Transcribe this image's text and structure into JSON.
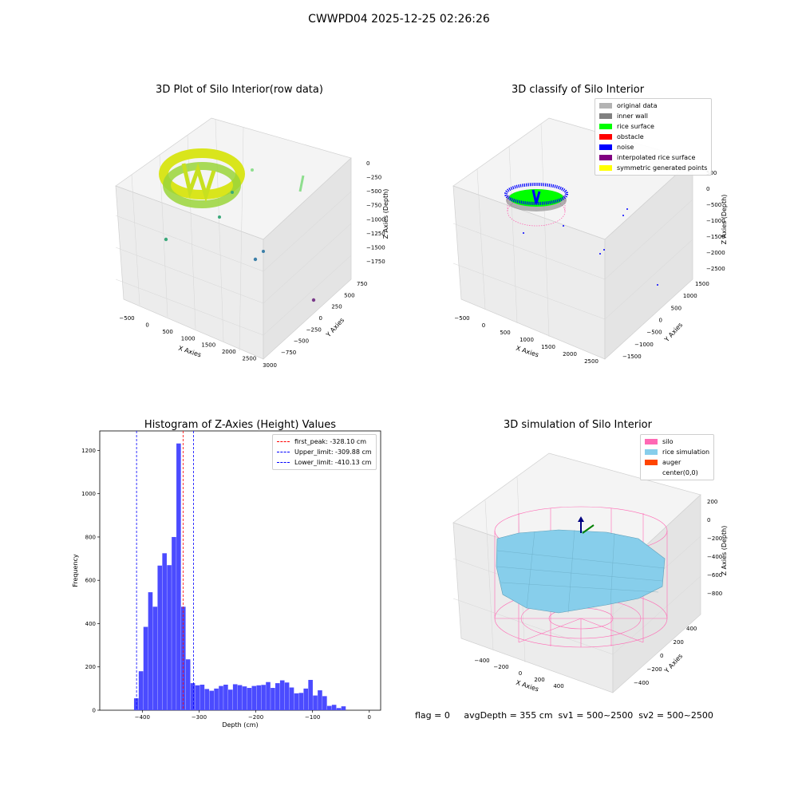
{
  "figure": {
    "suptitle": "CWWPD04 2025-12-25 02:26:26",
    "status_line": "flag = 0     avgDepth = 355 cm  sv1 = 500~2500  sv2 = 500~2500"
  },
  "panels": {
    "raw": {
      "title": "3D Plot of Silo Interior(row data)",
      "xlabel": "X Axies",
      "ylabel": "Y Axies",
      "zlabel": "Z Axies (Depth)",
      "xticks": [
        "-500",
        "0",
        "500",
        "1000",
        "1500",
        "2000",
        "2500",
        "3000"
      ],
      "yticks": [
        "-750",
        "-500",
        "-250",
        "0",
        "250",
        "500",
        "750"
      ],
      "zticks": [
        "0",
        "-250",
        "-500",
        "-750",
        "-1000",
        "-1250",
        "-1500",
        "-1750"
      ]
    },
    "classify": {
      "title": "3D classify of Silo Interior",
      "xlabel": "X Axies",
      "ylabel": "Y Axies",
      "zlabel": "Z Axies (Depth)",
      "xticks": [
        "-500",
        "0",
        "500",
        "1000",
        "1500",
        "2000",
        "2500"
      ],
      "yticks": [
        "-1500",
        "-1000",
        "-500",
        "0",
        "500",
        "1000",
        "1500"
      ],
      "zticks": [
        "500",
        "0",
        "-500",
        "-1000",
        "-1500",
        "-2000",
        "-2500"
      ],
      "legend": [
        {
          "label": "original data",
          "color": "#b3b3b3"
        },
        {
          "label": "inner wall",
          "color": "#808080"
        },
        {
          "label": "rice surface",
          "color": "#00ff00"
        },
        {
          "label": "obstacle",
          "color": "#ff0000"
        },
        {
          "label": "noise",
          "color": "#0000ff"
        },
        {
          "label": "interpolated rice surface",
          "color": "#800080"
        },
        {
          "label": "symmetric generated points",
          "color": "#ffff00"
        }
      ]
    },
    "simulation": {
      "title": "3D simulation of Silo Interior",
      "xlabel": "X Axies",
      "ylabel": "Y Axies",
      "zlabel": "Z Axies (Depth)",
      "xticks": [
        "-400",
        "-200",
        "0",
        "200",
        "400"
      ],
      "yticks": [
        "-400",
        "-200",
        "0",
        "200",
        "400"
      ],
      "zticks": [
        "200",
        "0",
        "-200",
        "-400",
        "-600",
        "-800"
      ],
      "legend": [
        {
          "label": "silo",
          "color": "#ff69b4"
        },
        {
          "label": "rice simulation",
          "color": "#87ceeb"
        },
        {
          "label": "auger",
          "color": "#ff4500"
        },
        {
          "label": "center(0,0)",
          "color": "#ffffff"
        }
      ]
    }
  },
  "chart_data": [
    {
      "type": "histogram",
      "title": "Histogram of Z-Axies (Height) Values",
      "xlabel": "Depth (cm)",
      "ylabel": "Frequency",
      "xlim": [
        -475,
        20
      ],
      "ylim": [
        0,
        1290
      ],
      "xticks": [
        -400,
        -300,
        -200,
        -100,
        0
      ],
      "yticks": [
        0,
        200,
        400,
        600,
        800,
        1000,
        1200
      ],
      "bin_width": 8.3,
      "bins_start": [
        -414.6,
        -406.3,
        -398.0,
        -389.7,
        -381.4,
        -373.1,
        -364.8,
        -356.5,
        -348.2,
        -339.9,
        -331.6,
        -323.3,
        -315.0,
        -306.7,
        -298.4,
        -290.1,
        -281.8,
        -273.5,
        -265.2,
        -256.9,
        -248.6,
        -240.3,
        -232.0,
        -223.7,
        -215.4,
        -207.1,
        -198.8,
        -190.5,
        -182.2,
        -173.9,
        -165.6,
        -157.3,
        -149.0,
        -140.7,
        -132.4,
        -124.1,
        -115.8,
        -107.5,
        -99.2,
        -90.9,
        -82.6,
        -74.3,
        -66.0,
        -57.7,
        -49.4,
        -41.1,
        -32.8,
        -24.5,
        -16.2,
        -7.9
      ],
      "frequencies": [
        55,
        180,
        385,
        545,
        478,
        668,
        725,
        670,
        800,
        1232,
        478,
        235,
        125,
        115,
        118,
        98,
        90,
        100,
        112,
        118,
        95,
        120,
        116,
        110,
        103,
        112,
        115,
        117,
        130,
        103,
        125,
        138,
        128,
        105,
        78,
        80,
        100,
        140,
        68,
        92,
        65,
        20,
        25,
        10,
        18,
        0,
        0,
        0,
        0,
        0
      ],
      "vlines": [
        {
          "label": "first_peak: -328.10 cm",
          "x": -328.1,
          "color": "#ff0000"
        },
        {
          "label": "Upper_limit: -309.88 cm",
          "x": -309.88,
          "color": "#0000ff"
        },
        {
          "label": "Lower_limit: -410.13 cm",
          "x": -410.13,
          "color": "#0000ff"
        }
      ],
      "bar_color": "#4b4bff",
      "legend_position": "top-right"
    }
  ]
}
